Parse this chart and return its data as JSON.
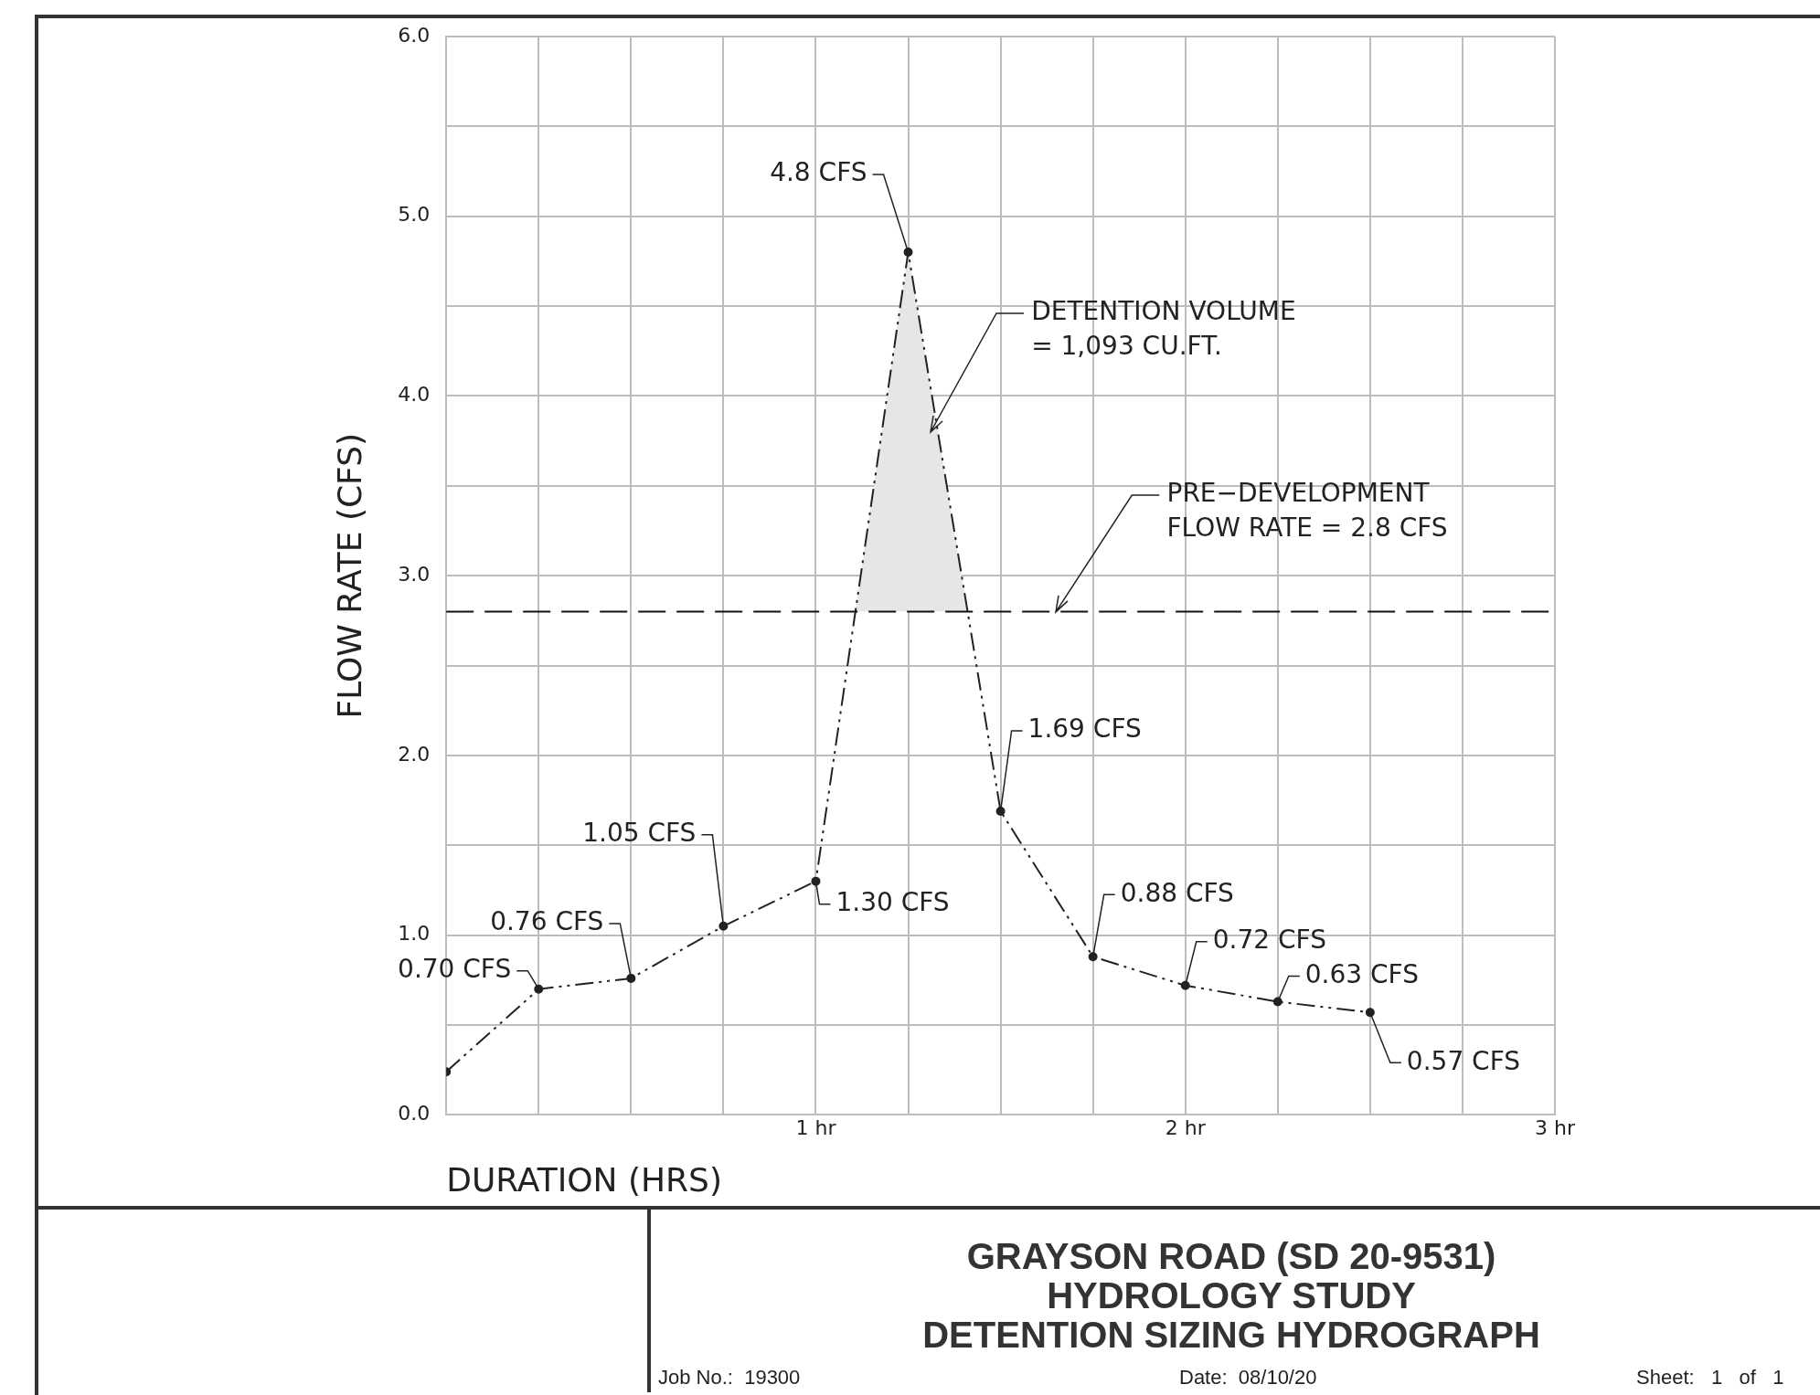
{
  "chart_data": {
    "type": "line",
    "title": "GRAYSON ROAD (SD 20-9531)\nHYDROLOGY STUDY\nDETENTION SIZING HYDROGRAPH",
    "xlabel": "DURATION (HRS)",
    "ylabel": "FLOW RATE (CFS)",
    "x": [
      0,
      0.25,
      0.5,
      0.75,
      1.0,
      1.25,
      1.5,
      1.75,
      2.0,
      2.25,
      2.5
    ],
    "series": [
      {
        "color": "#222222",
        "values": [
          0.24,
          0.7,
          0.76,
          1.05,
          1.3,
          4.8,
          1.69,
          0.88,
          0.72,
          0.63,
          0.57
        ],
        "value_labels": [
          null,
          "0.70 CFS",
          "0.76 CFS",
          "1.05 CFS",
          "1.30 CFS",
          "4.8 CFS",
          "1.69 CFS",
          "0.88 CFS",
          "0.72 CFS",
          "0.63 CFS",
          "0.57 CFS"
        ]
      }
    ],
    "xlim": [
      0,
      3
    ],
    "xticks": [
      {
        "value": 0,
        "label": null
      },
      {
        "value": 0.25,
        "label": null
      },
      {
        "value": 0.5,
        "label": null
      },
      {
        "value": 0.75,
        "label": null
      },
      {
        "value": 1,
        "label": "1 hr"
      },
      {
        "value": 1.25,
        "label": null
      },
      {
        "value": 1.5,
        "label": null
      },
      {
        "value": 1.75,
        "label": null
      },
      {
        "value": 2,
        "label": "2 hr"
      },
      {
        "value": 2.25,
        "label": null
      },
      {
        "value": 2.5,
        "label": null
      },
      {
        "value": 2.75,
        "label": null
      },
      {
        "value": 3,
        "label": "3 hr"
      }
    ],
    "ylim": [
      0,
      6
    ],
    "yticks": [
      {
        "value": 0,
        "label": "0.0"
      },
      {
        "value": 0.5,
        "label": null
      },
      {
        "value": 1,
        "label": "1.0"
      },
      {
        "value": 1.5,
        "label": null
      },
      {
        "value": 2,
        "label": "2.0"
      },
      {
        "value": 2.5,
        "label": null
      },
      {
        "value": 3,
        "label": "3.0"
      },
      {
        "value": 3.5,
        "label": null
      },
      {
        "value": 4,
        "label": "4.0"
      },
      {
        "value": 4.5,
        "label": null
      },
      {
        "value": 5,
        "label": "5.0"
      },
      {
        "value": 5.5,
        "label": null
      },
      {
        "value": 6,
        "label": "6.0"
      }
    ],
    "grid": true,
    "marker": "circle",
    "line_style": "dashed",
    "legend": false,
    "ref_lines": [
      {
        "axis": "y",
        "value": 2.8,
        "label": "PRE−DEVELOPMENT\nFLOW RATE = 2.8 CFS",
        "color": "#111111",
        "line_style": "dashed"
      }
    ],
    "annotations": [
      "DETENTION VOLUME\n= 1,093 CU.FT.",
      "Job No.:  19300",
      "Date:  08/10/20",
      "Sheet:   1   of   1"
    ]
  }
}
